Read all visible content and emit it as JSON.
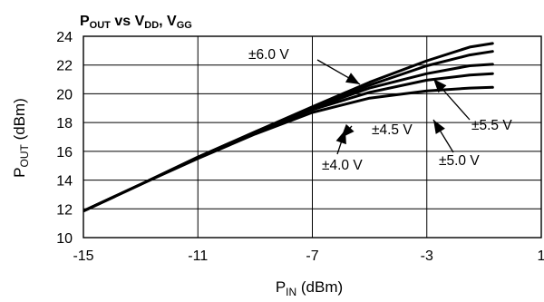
{
  "chart_data": {
    "type": "line",
    "title": {
      "p": "P",
      "out": "OUT",
      "vs": " vs V",
      "dd": "DD",
      "comma": ", V",
      "gg": "GG"
    },
    "xlabel": {
      "p": "P",
      "in": "IN",
      "unit": " (dBm)"
    },
    "ylabel": {
      "p": "P",
      "out": "OUT",
      "unit": " (dBm)"
    },
    "xlim": [
      -15,
      1
    ],
    "ylim": [
      10,
      24
    ],
    "grid": true,
    "x_ticks": [
      "-15",
      "-11",
      "-7",
      "-3",
      "1"
    ],
    "y_ticks": [
      "10",
      "12",
      "14",
      "16",
      "18",
      "20",
      "22",
      "24"
    ],
    "series": [
      {
        "name": "±6.0 V",
        "x": [
          -15,
          -13,
          -11,
          -9,
          -7,
          -5,
          -3,
          -1.5,
          -0.7
        ],
        "y": [
          11.85,
          13.7,
          15.6,
          17.35,
          19.1,
          20.8,
          22.3,
          23.25,
          23.5
        ]
      },
      {
        "name": "±5.5 V",
        "x": [
          -15,
          -13,
          -11,
          -9,
          -7,
          -5,
          -3,
          -1.5,
          -0.7
        ],
        "y": [
          11.85,
          13.7,
          15.6,
          17.35,
          19.05,
          20.6,
          21.95,
          22.7,
          22.95
        ]
      },
      {
        "name": "±5.0 V",
        "x": [
          -15,
          -13,
          -11,
          -9,
          -7,
          -5,
          -3,
          -1.5,
          -0.7
        ],
        "y": [
          11.85,
          13.7,
          15.6,
          17.3,
          19.0,
          20.4,
          21.4,
          21.95,
          22.05
        ]
      },
      {
        "name": "±4.5 V",
        "x": [
          -15,
          -13,
          -11,
          -9,
          -7,
          -5,
          -3,
          -1.5,
          -0.7
        ],
        "y": [
          11.85,
          13.7,
          15.55,
          17.3,
          18.9,
          20.1,
          20.95,
          21.3,
          21.4
        ]
      },
      {
        "name": "±4.0 V",
        "x": [
          -15,
          -13,
          -11,
          -9,
          -7,
          -5,
          -3,
          -1.5,
          -0.7
        ],
        "y": [
          11.85,
          13.7,
          15.5,
          17.2,
          18.7,
          19.7,
          20.2,
          20.4,
          20.45
        ]
      }
    ],
    "annotations": [
      {
        "text": "±6.0 V",
        "series": "±6.0 V"
      },
      {
        "text": "±4.5 V",
        "series": "±4.5 V"
      },
      {
        "text": "±5.5 V",
        "series": "±5.5 V"
      },
      {
        "text": "±5.0 V",
        "series": "±5.0 V"
      },
      {
        "text": "±4.0 V",
        "series": "±4.0 V"
      }
    ]
  }
}
